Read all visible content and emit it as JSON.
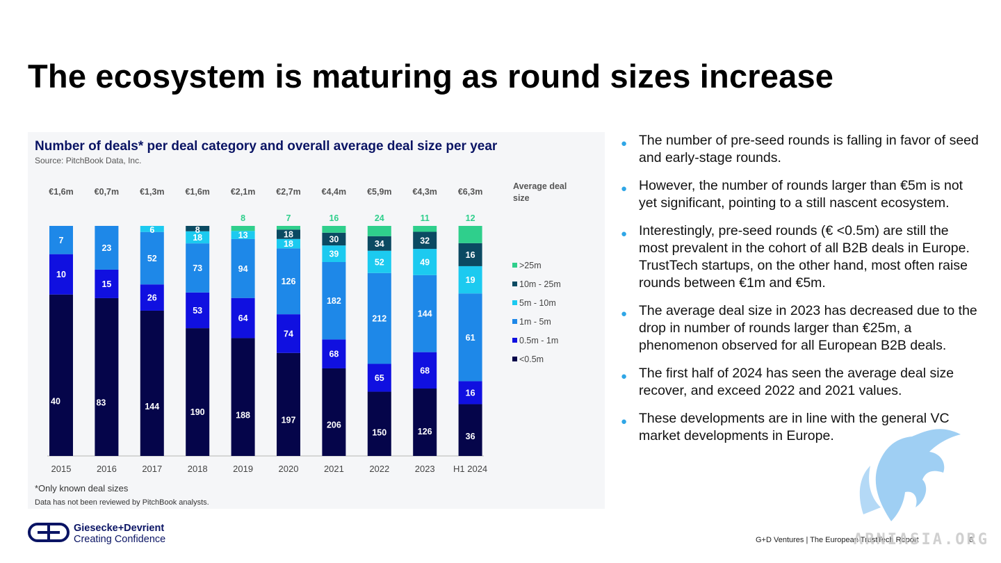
{
  "title": "The ecosystem is maturing as round sizes increase",
  "chart": {
    "heading": "Number of deals* per deal category and overall average deal size per year",
    "source": "Source: PitchBook Data, Inc.",
    "footnote": "*Only known deal sizes",
    "review_note": "Data has not been reviewed by PitchBook analysts."
  },
  "chart_data": {
    "type": "bar",
    "stacked": true,
    "normalized": true,
    "categories": [
      "2015",
      "2016",
      "2017",
      "2018",
      "2019",
      "2020",
      "2021",
      "2022",
      "2023",
      "H1 2024"
    ],
    "average_deal_size": [
      "€1,6m",
      "€0,7m",
      "€1,3m",
      "€1,6m",
      "€2,1m",
      "€2,7m",
      "€4,4m",
      "€5,9m",
      "€4,3m",
      "€6,3m"
    ],
    "average_label": "Average deal size",
    "series": [
      {
        "name": "<0.5m",
        "color": "#05054a",
        "values": [
          40,
          83,
          144,
          190,
          188,
          197,
          206,
          150,
          126,
          36
        ]
      },
      {
        "name": "0.5m - 1m",
        "color": "#1010e0",
        "values": [
          10,
          15,
          26,
          53,
          64,
          74,
          68,
          65,
          68,
          16
        ]
      },
      {
        "name": "1m - 5m",
        "color": "#1e88e8",
        "values": [
          7,
          23,
          52,
          73,
          94,
          126,
          182,
          212,
          144,
          61
        ]
      },
      {
        "name": "5m - 10m",
        "color": "#1ccaf0",
        "values": [
          0,
          0,
          6,
          18,
          13,
          18,
          39,
          52,
          49,
          19
        ]
      },
      {
        "name": "10m - 25m",
        "color": "#0b4a62",
        "values": [
          0,
          0,
          0,
          8,
          0,
          18,
          30,
          34,
          32,
          16
        ]
      },
      {
        "name": ">25m",
        "color": "#2fcf8c",
        "values": [
          0,
          0,
          0,
          0,
          8,
          7,
          16,
          24,
          11,
          12
        ]
      }
    ],
    "legend_position": "right"
  },
  "bullets": [
    "The number of pre-seed rounds is falling in favor of seed and early-stage rounds.",
    "However, the number of rounds larger than €5m is not yet significant, pointing to a still nascent ecosystem.",
    "Interestingly, pre-seed rounds (€ <0.5m) are still the most prevalent in the cohort of all B2B deals in Europe. TrustTech startups, on the other hand, most often raise rounds between €1m and €5m.",
    "The average deal size in 2023 has decreased due to the drop in number of rounds larger than €25m, a phenomenon observed for all European B2B deals.",
    "The first half of 2024 has seen the average deal size recover, and exceed 2022 and 2021 values.",
    "These developments are in line with the general VC market developments in Europe."
  ],
  "logo": {
    "name": "Giesecke+Devrient",
    "tagline": "Creating Confidence"
  },
  "footer": {
    "text": "G+D Ventures  |  The European TrustTech Report",
    "page": "6"
  },
  "watermark": "ARNIASIA.ORG",
  "colors": {
    "navy": "#0a1464",
    "bullet": "#2fa6e6"
  }
}
